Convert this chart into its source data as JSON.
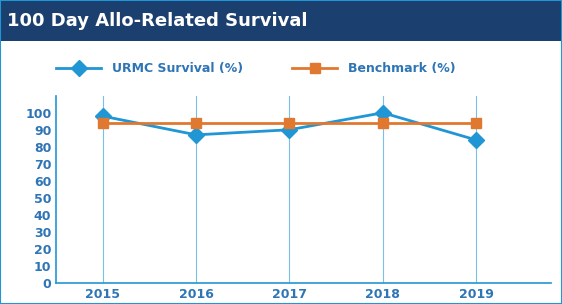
{
  "title": "100 Day Allo-Related Survival",
  "title_bg_color": "#1b3f6e",
  "title_text_color": "#ffffff",
  "years": [
    2015,
    2016,
    2017,
    2018,
    2019
  ],
  "urmc_values": [
    98,
    87,
    90,
    100,
    84
  ],
  "benchmark_values": [
    94,
    94,
    94,
    94,
    94
  ],
  "urmc_label": "URMC Survival (%)",
  "benchmark_label": "Benchmark (%)",
  "urmc_color": "#2196d4",
  "benchmark_color": "#e07830",
  "ylim": [
    0,
    110
  ],
  "yticks": [
    0,
    10,
    20,
    30,
    40,
    50,
    60,
    70,
    80,
    90,
    100
  ],
  "grid_color": "#2196d4",
  "axis_color": "#2e75b6",
  "border_color": "#2196d4",
  "background_color": "#ffffff",
  "legend_fontsize": 9,
  "tick_fontsize": 9,
  "linewidth": 2.0,
  "marker_size": 8,
  "title_fontsize": 13
}
